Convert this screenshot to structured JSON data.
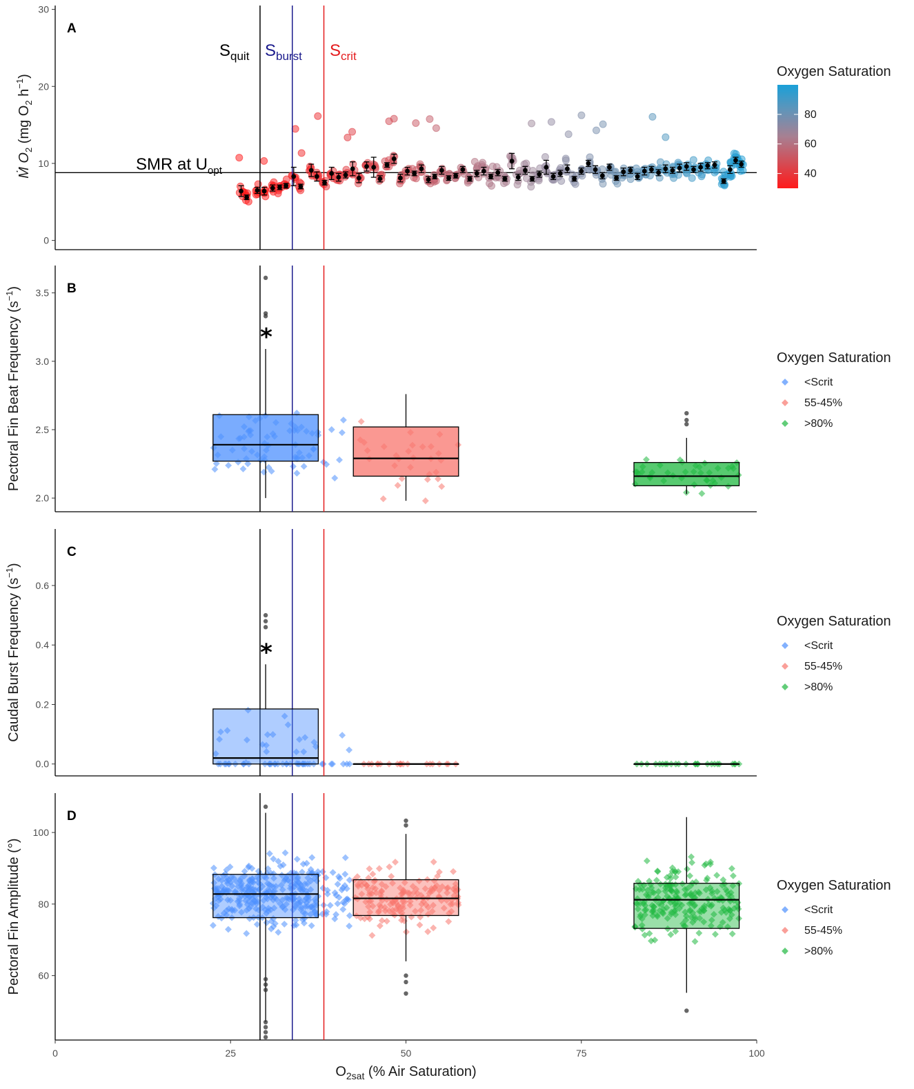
{
  "chart_data": [
    {
      "panel": "A",
      "type": "scatter",
      "ylabel": "Ṁ O₂ (mg O₂ h⁻¹)",
      "ylabel_parts": {
        "base": "Ṁ O",
        "sub1": "2",
        "mid": " (mg O",
        "sub2": "2",
        "mid2": " h",
        "sup": "−1",
        "end": ")"
      },
      "xlim": [
        0,
        100
      ],
      "ylim": [
        -1.2,
        30.5
      ],
      "yticks": [
        0,
        10,
        20,
        30
      ],
      "smr_value": 8.8,
      "smr_label": {
        "base": "SMR at U",
        "sub": "opt"
      },
      "threshold_labels": [
        {
          "base": "S",
          "sub": "quit",
          "color": "#000000"
        },
        {
          "base": "S",
          "sub": "burst",
          "color": "#1a1a8c"
        },
        {
          "base": "S",
          "sub": "crit",
          "color": "#e41a1c"
        }
      ],
      "means": [
        {
          "x": 26.5,
          "y": 6.4,
          "err": 0.7
        },
        {
          "x": 27.3,
          "y": 5.6,
          "err": 0.3
        },
        {
          "x": 28.8,
          "y": 6.5,
          "err": 0.4
        },
        {
          "x": 29.8,
          "y": 6.4,
          "err": 0.5
        },
        {
          "x": 31.0,
          "y": 6.8,
          "err": 0.4
        },
        {
          "x": 32.0,
          "y": 6.9,
          "err": 0.3
        },
        {
          "x": 32.9,
          "y": 7.1,
          "err": 0.3
        },
        {
          "x": 34.0,
          "y": 8.3,
          "err": 1.2
        },
        {
          "x": 35.0,
          "y": 7.0,
          "err": 0.3
        },
        {
          "x": 36.5,
          "y": 9.1,
          "err": 0.8
        },
        {
          "x": 37.3,
          "y": 8.3,
          "err": 0.6
        },
        {
          "x": 38.4,
          "y": 7.5,
          "err": 0.3
        },
        {
          "x": 39.4,
          "y": 8.7,
          "err": 0.8
        },
        {
          "x": 40.4,
          "y": 8.2,
          "err": 0.5
        },
        {
          "x": 41.4,
          "y": 8.5,
          "err": 0.4
        },
        {
          "x": 42.4,
          "y": 9.3,
          "err": 0.9
        },
        {
          "x": 43.3,
          "y": 8.1,
          "err": 0.6
        },
        {
          "x": 44.4,
          "y": 9.6,
          "err": 0.6
        },
        {
          "x": 45.4,
          "y": 9.5,
          "err": 1.3
        },
        {
          "x": 46.3,
          "y": 8.0,
          "err": 0.4
        },
        {
          "x": 47.3,
          "y": 9.8,
          "err": 0.3
        },
        {
          "x": 48.3,
          "y": 10.6,
          "err": 0.6
        },
        {
          "x": 49.2,
          "y": 8.1,
          "err": 0.5
        },
        {
          "x": 50.2,
          "y": 9.0,
          "err": 0.5
        },
        {
          "x": 51.2,
          "y": 8.7,
          "err": 0.3
        },
        {
          "x": 52.2,
          "y": 9.3,
          "err": 0.5
        },
        {
          "x": 53.2,
          "y": 7.9,
          "err": 0.4
        },
        {
          "x": 54.1,
          "y": 8.3,
          "err": 0.3
        },
        {
          "x": 55.1,
          "y": 9.1,
          "err": 0.5
        },
        {
          "x": 56.1,
          "y": 8.1,
          "err": 0.3
        },
        {
          "x": 57.1,
          "y": 8.4,
          "err": 0.3
        },
        {
          "x": 58.1,
          "y": 9.2,
          "err": 0.4
        },
        {
          "x": 59.1,
          "y": 8.0,
          "err": 0.3
        },
        {
          "x": 60.1,
          "y": 8.7,
          "err": 0.4
        },
        {
          "x": 61.1,
          "y": 9.0,
          "err": 0.5
        },
        {
          "x": 62.1,
          "y": 8.3,
          "err": 0.3
        },
        {
          "x": 63.1,
          "y": 8.8,
          "err": 0.4
        },
        {
          "x": 64.1,
          "y": 8.0,
          "err": 0.3
        },
        {
          "x": 65.1,
          "y": 10.3,
          "err": 1.0
        },
        {
          "x": 66.0,
          "y": 8.2,
          "err": 0.4
        },
        {
          "x": 67.0,
          "y": 9.1,
          "err": 0.5
        },
        {
          "x": 68.0,
          "y": 8.0,
          "err": 0.3
        },
        {
          "x": 69.0,
          "y": 8.6,
          "err": 0.4
        },
        {
          "x": 70.0,
          "y": 9.5,
          "err": 0.9
        },
        {
          "x": 71.0,
          "y": 8.3,
          "err": 0.4
        },
        {
          "x": 72.0,
          "y": 8.7,
          "err": 0.4
        },
        {
          "x": 73.0,
          "y": 9.3,
          "err": 0.5
        },
        {
          "x": 74.0,
          "y": 8.0,
          "err": 0.3
        },
        {
          "x": 75.0,
          "y": 9.0,
          "err": 0.4
        },
        {
          "x": 76.0,
          "y": 10.0,
          "err": 0.4
        },
        {
          "x": 77.0,
          "y": 9.2,
          "err": 0.5
        },
        {
          "x": 78.0,
          "y": 8.4,
          "err": 0.4
        },
        {
          "x": 79.0,
          "y": 9.5,
          "err": 0.4
        },
        {
          "x": 80.0,
          "y": 8.1,
          "err": 0.3
        },
        {
          "x": 81.0,
          "y": 8.9,
          "err": 0.5
        },
        {
          "x": 82.0,
          "y": 9.1,
          "err": 0.4
        },
        {
          "x": 83.0,
          "y": 8.3,
          "err": 0.4
        },
        {
          "x": 84.0,
          "y": 9.0,
          "err": 0.5
        },
        {
          "x": 85.0,
          "y": 9.2,
          "err": 0.4
        },
        {
          "x": 86.0,
          "y": 8.8,
          "err": 0.4
        },
        {
          "x": 87.0,
          "y": 9.3,
          "err": 0.5
        },
        {
          "x": 88.0,
          "y": 9.1,
          "err": 0.4
        },
        {
          "x": 89.0,
          "y": 9.4,
          "err": 0.5
        },
        {
          "x": 90.0,
          "y": 9.6,
          "err": 0.5
        },
        {
          "x": 91.0,
          "y": 9.2,
          "err": 0.4
        },
        {
          "x": 92.0,
          "y": 9.5,
          "err": 0.5
        },
        {
          "x": 93.0,
          "y": 9.7,
          "err": 0.4
        },
        {
          "x": 94.0,
          "y": 9.8,
          "err": 0.4
        },
        {
          "x": 95.3,
          "y": 7.7,
          "err": 0.3
        },
        {
          "x": 96.2,
          "y": 9.2,
          "err": 0.5
        },
        {
          "x": 97.0,
          "y": 10.4,
          "err": 0.4
        },
        {
          "x": 97.8,
          "y": 9.9,
          "err": 0.4
        }
      ],
      "colorbar": {
        "title": "Oxygen Saturation",
        "range": [
          30,
          100
        ],
        "ticks": [
          40,
          60,
          80
        ],
        "low_color": "#ff1a1a",
        "high_color": "#1aa0d8"
      }
    },
    {
      "panel": "B",
      "type": "boxplot",
      "ylabel": "Pectoral Fin Beat Frequency (s⁻¹)",
      "ylabel_parts": {
        "base": "Pectoral Fin Beat Frequency (s",
        "sup": "−1",
        "end": ")"
      },
      "ylim": [
        1.9,
        3.7
      ],
      "yticks": [
        2.0,
        2.5,
        3.0,
        3.5
      ],
      "ytick_labels": [
        "2.0",
        "2.5",
        "3.0",
        "3.5"
      ],
      "significance": "*",
      "boxes": [
        {
          "group": "<Scrit",
          "center": 30,
          "q1": 2.27,
          "median": 2.39,
          "q3": 2.61,
          "lower_whisker": 2.0,
          "upper_whisker": 3.09,
          "outliers": [
            3.33,
            3.35,
            3.61
          ]
        },
        {
          "group": "55-45%",
          "center": 50,
          "q1": 2.16,
          "median": 2.29,
          "q3": 2.52,
          "lower_whisker": 1.98,
          "upper_whisker": 2.76,
          "outliers": []
        },
        {
          "group": ">80%",
          "center": 90,
          "q1": 2.09,
          "median": 2.16,
          "q3": 2.26,
          "lower_whisker": 2.03,
          "upper_whisker": 2.44,
          "outliers": [
            2.54,
            2.57,
            2.62
          ]
        }
      ],
      "legend": {
        "title": "Oxygen Saturation",
        "items": [
          "<Scrit",
          "55-45%",
          ">80%"
        ]
      }
    },
    {
      "panel": "C",
      "type": "boxplot",
      "ylabel": "Caudal Burst Frequency (s⁻¹)",
      "ylabel_parts": {
        "base": "Caudal Burst Frequency (s",
        "sup": "−1",
        "end": ")"
      },
      "ylim": [
        -0.04,
        0.79
      ],
      "yticks": [
        0.0,
        0.2,
        0.4,
        0.6
      ],
      "ytick_labels": [
        "0.0",
        "0.2",
        "0.4",
        "0.6"
      ],
      "significance": "*",
      "boxes": [
        {
          "group": "<Scrit",
          "center": 30,
          "q1": 0.0,
          "median": 0.02,
          "q3": 0.185,
          "lower_whisker": 0.0,
          "upper_whisker": 0.335,
          "outliers": [
            0.46,
            0.48,
            0.5
          ]
        },
        {
          "group": "55-45%",
          "center": 50,
          "q1": 0.0,
          "median": 0.0,
          "q3": 0.0,
          "lower_whisker": 0.0,
          "upper_whisker": 0.0,
          "outliers": []
        },
        {
          "group": ">80%",
          "center": 90,
          "q1": 0.0,
          "median": 0.0,
          "q3": 0.0,
          "lower_whisker": 0.0,
          "upper_whisker": 0.0,
          "outliers": []
        }
      ],
      "legend": {
        "title": "Oxygen Saturation",
        "items": [
          "<Scrit",
          "55-45%",
          ">80%"
        ]
      }
    },
    {
      "panel": "D",
      "type": "boxplot",
      "ylabel": "Pectoral Fin Amplitude (°)",
      "ylim": [
        42,
        111
      ],
      "yticks": [
        60,
        80,
        100
      ],
      "ytick_labels": [
        "60",
        "80",
        "100"
      ],
      "boxes": [
        {
          "group": "<Scrit",
          "center": 30,
          "q1": 76.2,
          "median": 82.8,
          "q3": 88.3,
          "lower_whisker": 47,
          "upper_whisker": 105.5,
          "outliers": [
            42.8,
            44.2,
            45.6,
            47.0,
            56.0,
            57.5,
            59.0,
            107.2
          ]
        },
        {
          "group": "55-45%",
          "center": 50,
          "q1": 76.8,
          "median": 81.6,
          "q3": 86.8,
          "lower_whisker": 64,
          "upper_whisker": 99.6,
          "outliers": [
            55.0,
            58.2,
            60.0,
            102.0,
            103.3
          ]
        },
        {
          "group": ">80%",
          "center": 90,
          "q1": 73.2,
          "median": 81.2,
          "q3": 85.8,
          "lower_whisker": 55.2,
          "upper_whisker": 104.3,
          "outliers": [
            50.2
          ]
        }
      ],
      "legend": {
        "title": "Oxygen Saturation",
        "items": [
          "<Scrit",
          "55-45%",
          ">80%"
        ]
      }
    }
  ],
  "shared_x": {
    "xlim": [
      0,
      100
    ],
    "xticks": [
      0,
      25,
      50,
      75,
      100
    ],
    "xlabel_parts": {
      "base": "O",
      "sub": "2sat",
      "end": " (% Air Saturation)"
    },
    "vlines": [
      {
        "name": "S_quit",
        "x": 29.2,
        "color": "#000000"
      },
      {
        "name": "S_burst",
        "x": 33.8,
        "color": "#1a1a8c"
      },
      {
        "name": "S_crit",
        "x": 38.3,
        "color": "#e41a1c"
      }
    ]
  },
  "group_colors": {
    "<Scrit": "#4d90fe",
    "55-45%": "#f8766d",
    ">80%": "#1fb840"
  }
}
